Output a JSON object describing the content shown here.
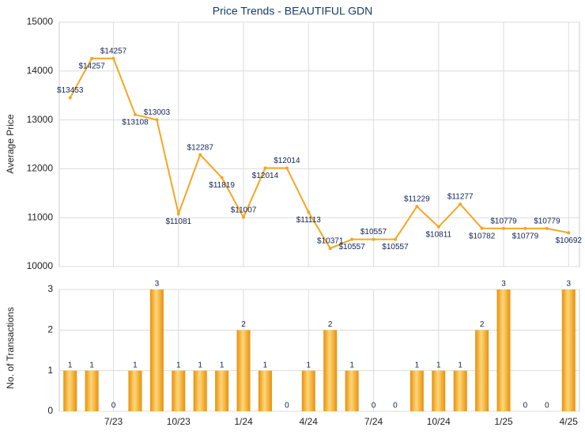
{
  "chart_data": [
    {
      "type": "line",
      "title": "Price Trends - BEAUTIFUL GDN",
      "y_label": "Average Price",
      "color": "#f5a623",
      "values": [
        13453,
        14257,
        14257,
        13108,
        13003,
        11081,
        12287,
        11819,
        11007,
        12014,
        12014,
        11113,
        10371,
        10557,
        10557,
        10557,
        11229,
        10811,
        11277,
        10782,
        10779,
        10779,
        10779,
        10692
      ],
      "value_labels": [
        "$13453",
        "$14257",
        "$14257",
        "$13108",
        "$13003",
        "$11081",
        "$12287",
        "$11819",
        "$11007",
        "$12014",
        "$12014",
        "$11113",
        "$10371",
        "$10557",
        "$10557",
        "$10557",
        "$11229",
        "$10811",
        "$11277",
        "$10782",
        "$10779",
        "$10779",
        "$10779",
        "$10692"
      ],
      "ylim": [
        10000,
        15000
      ],
      "yticks": [
        10000,
        11000,
        12000,
        13000,
        14000,
        15000
      ],
      "grid": true
    },
    {
      "type": "bar",
      "y_label": "No. of Transactions",
      "color": "#f0a020",
      "categories": [
        null,
        null,
        "7/23",
        null,
        null,
        "10/23",
        null,
        null,
        "1/24",
        null,
        null,
        "4/24",
        null,
        null,
        "7/24",
        null,
        null,
        "10/24",
        null,
        null,
        "1/25",
        null,
        null,
        "4/25"
      ],
      "values": [
        1,
        1,
        0,
        1,
        3,
        1,
        1,
        1,
        2,
        1,
        0,
        1,
        2,
        1,
        0,
        0,
        1,
        1,
        1,
        2,
        3,
        0,
        0,
        3
      ],
      "ylim": [
        0,
        3
      ],
      "yticks": [
        0,
        1,
        2,
        3
      ],
      "grid": true
    }
  ]
}
